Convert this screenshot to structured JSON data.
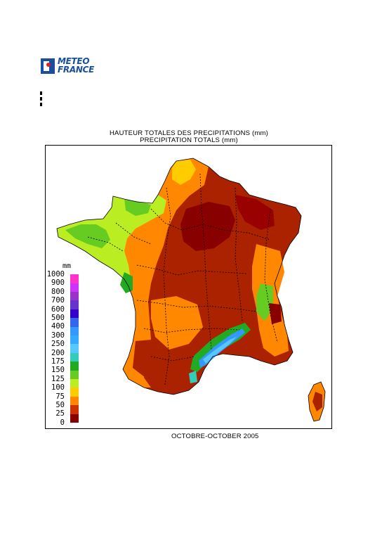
{
  "logo": {
    "line1": "METEO",
    "line2": "FRANCE"
  },
  "title": {
    "line1": "HAUTEUR TOTALES DES PRECIPITATIONS (mm)",
    "line2": "PRECIPITATION TOTALS (mm)"
  },
  "period": "OCTOBRE-OCTOBER 2005",
  "legend": {
    "unit": "mm",
    "classes": [
      {
        "label": "1000",
        "color": "#ffffff"
      },
      {
        "label": "900",
        "color": "#ff33cc"
      },
      {
        "label": "800",
        "color": "#cc33ff"
      },
      {
        "label": "700",
        "color": "#9933cc"
      },
      {
        "label": "600",
        "color": "#6633cc"
      },
      {
        "label": "500",
        "color": "#3300cc"
      },
      {
        "label": "400",
        "color": "#3366ee"
      },
      {
        "label": "300",
        "color": "#3399ff"
      },
      {
        "label": "250",
        "color": "#33aaff"
      },
      {
        "label": "200",
        "color": "#55c8ff"
      },
      {
        "label": "175",
        "color": "#33ccbb"
      },
      {
        "label": "150",
        "color": "#22aa22"
      },
      {
        "label": "125",
        "color": "#66cc22"
      },
      {
        "label": "100",
        "color": "#bbee22"
      },
      {
        "label": "75",
        "color": "#ffcc00"
      },
      {
        "label": "50",
        "color": "#ff8800"
      },
      {
        "label": "25",
        "color": "#cc3300"
      },
      {
        "label": "0",
        "color": "#880000"
      }
    ]
  },
  "colors": {
    "brand": "#1a4fa0",
    "brand_red": "#e0201c"
  }
}
